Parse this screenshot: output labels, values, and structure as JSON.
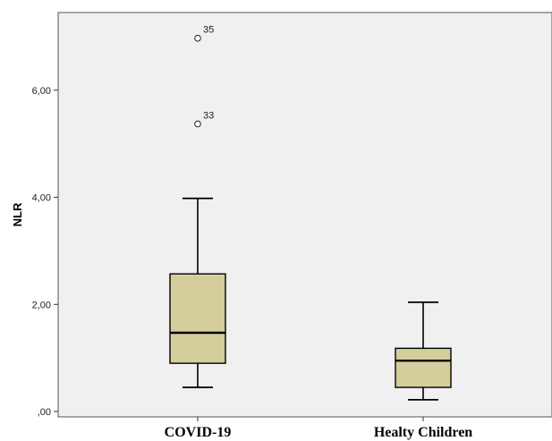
{
  "chart_data": {
    "type": "boxplot",
    "title": "",
    "xlabel": "",
    "ylabel": "NLR",
    "ylim": [
      -0.1,
      7.45
    ],
    "yticks": [
      0,
      2,
      4,
      6
    ],
    "ytick_labels": [
      ",00",
      "2,00",
      "4,00",
      "6,00"
    ],
    "categories": [
      "COVID-19",
      "Healty Children"
    ],
    "boxes": [
      {
        "category": "COVID-19",
        "whisker_low": 0.45,
        "q1": 0.9,
        "median": 1.47,
        "q3": 2.57,
        "whisker_high": 3.98,
        "outliers": [
          {
            "value": 5.37,
            "label": "33"
          },
          {
            "value": 6.97,
            "label": "35"
          }
        ]
      },
      {
        "category": "Healty Children",
        "whisker_low": 0.22,
        "q1": 0.45,
        "median": 0.95,
        "q3": 1.18,
        "whisker_high": 2.04,
        "outliers": []
      }
    ],
    "colors": {
      "plot_bg": "#f0f0f0",
      "box_fill": "#d4cd9c",
      "stroke": "#000000"
    },
    "grid": false,
    "legend": "none"
  }
}
